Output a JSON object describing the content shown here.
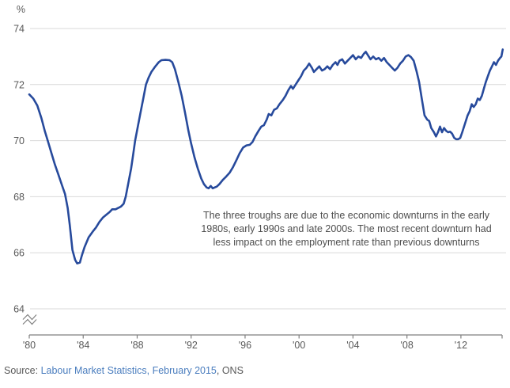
{
  "chart": {
    "unit_label": "%",
    "annotation": {
      "lines": [
        "The three troughs are due to the economic downturns in the early",
        "1980s, early 1990s and late 2000s. The most recent downturn had",
        "less impact on the employment rate than previous downturns"
      ]
    },
    "source": {
      "prefix": "Source: ",
      "link_text": "Labour Market Statistics, February 2015",
      "suffix": ", ONS"
    }
  },
  "colors": {
    "line": "#274a9c",
    "grid": "#d9d9d9",
    "axis": "#7f7f7f",
    "tick_text": "#595959",
    "annotation_text": "#4d4d4d",
    "link": "#4a7dbe"
  },
  "chart_data": {
    "type": "line",
    "title": "",
    "xlabel": "",
    "ylabel": "%",
    "ylim": [
      64,
      74
    ],
    "xlim": [
      1980,
      2015.1
    ],
    "grid": "horizontal",
    "legend": "none",
    "axis_break": true,
    "y_ticks": [
      74,
      72,
      70,
      68,
      66,
      64
    ],
    "x_ticks": [
      {
        "year": 1980,
        "label": "'80"
      },
      {
        "year": 1984,
        "label": "'84"
      },
      {
        "year": 1988,
        "label": "'88"
      },
      {
        "year": 1992,
        "label": "'92"
      },
      {
        "year": 1996,
        "label": "'96"
      },
      {
        "year": 2000,
        "label": "'00"
      },
      {
        "year": 2004,
        "label": "'04"
      },
      {
        "year": 2008,
        "label": "'08"
      },
      {
        "year": 2012,
        "label": "'12"
      }
    ],
    "series": [
      {
        "points": [
          [
            1980.0,
            71.65
          ],
          [
            1980.3,
            71.5
          ],
          [
            1980.6,
            71.25
          ],
          [
            1980.9,
            70.8
          ],
          [
            1981.15,
            70.35
          ],
          [
            1981.4,
            69.95
          ],
          [
            1981.65,
            69.55
          ],
          [
            1981.9,
            69.15
          ],
          [
            1982.15,
            68.8
          ],
          [
            1982.4,
            68.45
          ],
          [
            1982.65,
            68.1
          ],
          [
            1982.85,
            67.6
          ],
          [
            1983.0,
            67.0
          ],
          [
            1983.2,
            66.1
          ],
          [
            1983.4,
            65.75
          ],
          [
            1983.55,
            65.62
          ],
          [
            1983.75,
            65.65
          ],
          [
            1983.9,
            65.9
          ],
          [
            1984.1,
            66.2
          ],
          [
            1984.4,
            66.55
          ],
          [
            1984.7,
            66.75
          ],
          [
            1984.95,
            66.9
          ],
          [
            1985.2,
            67.1
          ],
          [
            1985.45,
            67.25
          ],
          [
            1985.7,
            67.35
          ],
          [
            1985.95,
            67.45
          ],
          [
            1986.15,
            67.55
          ],
          [
            1986.4,
            67.55
          ],
          [
            1986.6,
            67.6
          ],
          [
            1986.8,
            67.65
          ],
          [
            1987.0,
            67.75
          ],
          [
            1987.15,
            68.0
          ],
          [
            1987.35,
            68.5
          ],
          [
            1987.55,
            69.0
          ],
          [
            1987.7,
            69.5
          ],
          [
            1987.85,
            70.0
          ],
          [
            1988.05,
            70.5
          ],
          [
            1988.25,
            71.0
          ],
          [
            1988.45,
            71.5
          ],
          [
            1988.65,
            72.0
          ],
          [
            1988.85,
            72.25
          ],
          [
            1989.05,
            72.45
          ],
          [
            1989.35,
            72.65
          ],
          [
            1989.6,
            72.8
          ],
          [
            1989.8,
            72.87
          ],
          [
            1990.1,
            72.88
          ],
          [
            1990.4,
            72.87
          ],
          [
            1990.6,
            72.8
          ],
          [
            1990.8,
            72.55
          ],
          [
            1991.05,
            72.1
          ],
          [
            1991.3,
            71.6
          ],
          [
            1991.55,
            71.0
          ],
          [
            1991.8,
            70.35
          ],
          [
            1992.0,
            69.9
          ],
          [
            1992.25,
            69.4
          ],
          [
            1992.5,
            69.0
          ],
          [
            1992.75,
            68.65
          ],
          [
            1992.95,
            68.45
          ],
          [
            1993.15,
            68.33
          ],
          [
            1993.3,
            68.3
          ],
          [
            1993.45,
            68.38
          ],
          [
            1993.6,
            68.3
          ],
          [
            1993.75,
            68.33
          ],
          [
            1993.9,
            68.36
          ],
          [
            1994.1,
            68.45
          ],
          [
            1994.35,
            68.6
          ],
          [
            1994.6,
            68.72
          ],
          [
            1994.85,
            68.85
          ],
          [
            1995.1,
            69.05
          ],
          [
            1995.35,
            69.3
          ],
          [
            1995.6,
            69.55
          ],
          [
            1995.85,
            69.75
          ],
          [
            1996.1,
            69.83
          ],
          [
            1996.35,
            69.85
          ],
          [
            1996.55,
            69.95
          ],
          [
            1996.75,
            70.15
          ],
          [
            1997.0,
            70.35
          ],
          [
            1997.2,
            70.5
          ],
          [
            1997.4,
            70.55
          ],
          [
            1997.6,
            70.75
          ],
          [
            1997.75,
            70.95
          ],
          [
            1997.95,
            70.9
          ],
          [
            1998.15,
            71.1
          ],
          [
            1998.35,
            71.15
          ],
          [
            1998.55,
            71.3
          ],
          [
            1998.8,
            71.45
          ],
          [
            1999.0,
            71.6
          ],
          [
            1999.2,
            71.8
          ],
          [
            1999.4,
            71.95
          ],
          [
            1999.55,
            71.85
          ],
          [
            1999.75,
            72.0
          ],
          [
            1999.95,
            72.15
          ],
          [
            2000.15,
            72.3
          ],
          [
            2000.35,
            72.5
          ],
          [
            2000.55,
            72.6
          ],
          [
            2000.75,
            72.75
          ],
          [
            2000.95,
            72.6
          ],
          [
            2001.1,
            72.45
          ],
          [
            2001.3,
            72.55
          ],
          [
            2001.5,
            72.65
          ],
          [
            2001.7,
            72.5
          ],
          [
            2001.9,
            72.55
          ],
          [
            2002.1,
            72.65
          ],
          [
            2002.3,
            72.55
          ],
          [
            2002.5,
            72.7
          ],
          [
            2002.7,
            72.8
          ],
          [
            2002.85,
            72.7
          ],
          [
            2003.0,
            72.85
          ],
          [
            2003.2,
            72.9
          ],
          [
            2003.4,
            72.75
          ],
          [
            2003.6,
            72.85
          ],
          [
            2003.8,
            72.95
          ],
          [
            2004.0,
            73.05
          ],
          [
            2004.2,
            72.9
          ],
          [
            2004.4,
            73.0
          ],
          [
            2004.6,
            72.95
          ],
          [
            2004.8,
            73.1
          ],
          [
            2004.95,
            73.17
          ],
          [
            2005.1,
            73.05
          ],
          [
            2005.3,
            72.9
          ],
          [
            2005.5,
            73.0
          ],
          [
            2005.7,
            72.9
          ],
          [
            2005.9,
            72.95
          ],
          [
            2006.1,
            72.85
          ],
          [
            2006.3,
            72.95
          ],
          [
            2006.5,
            72.8
          ],
          [
            2006.7,
            72.7
          ],
          [
            2006.9,
            72.6
          ],
          [
            2007.1,
            72.5
          ],
          [
            2007.3,
            72.6
          ],
          [
            2007.5,
            72.75
          ],
          [
            2007.7,
            72.85
          ],
          [
            2007.9,
            73.0
          ],
          [
            2008.1,
            73.05
          ],
          [
            2008.3,
            72.98
          ],
          [
            2008.5,
            72.85
          ],
          [
            2008.7,
            72.5
          ],
          [
            2008.9,
            72.1
          ],
          [
            2009.1,
            71.5
          ],
          [
            2009.3,
            70.9
          ],
          [
            2009.5,
            70.75
          ],
          [
            2009.65,
            70.7
          ],
          [
            2009.8,
            70.45
          ],
          [
            2010.0,
            70.3
          ],
          [
            2010.15,
            70.15
          ],
          [
            2010.3,
            70.3
          ],
          [
            2010.45,
            70.5
          ],
          [
            2010.6,
            70.3
          ],
          [
            2010.75,
            70.45
          ],
          [
            2010.9,
            70.35
          ],
          [
            2011.05,
            70.3
          ],
          [
            2011.2,
            70.32
          ],
          [
            2011.35,
            70.25
          ],
          [
            2011.5,
            70.1
          ],
          [
            2011.65,
            70.05
          ],
          [
            2011.8,
            70.05
          ],
          [
            2011.95,
            70.1
          ],
          [
            2012.1,
            70.3
          ],
          [
            2012.3,
            70.6
          ],
          [
            2012.5,
            70.9
          ],
          [
            2012.65,
            71.05
          ],
          [
            2012.8,
            71.3
          ],
          [
            2012.95,
            71.2
          ],
          [
            2013.1,
            71.3
          ],
          [
            2013.25,
            71.5
          ],
          [
            2013.4,
            71.45
          ],
          [
            2013.55,
            71.6
          ],
          [
            2013.7,
            71.85
          ],
          [
            2013.85,
            72.1
          ],
          [
            2014.0,
            72.3
          ],
          [
            2014.15,
            72.5
          ],
          [
            2014.3,
            72.65
          ],
          [
            2014.45,
            72.8
          ],
          [
            2014.6,
            72.7
          ],
          [
            2014.75,
            72.85
          ],
          [
            2014.9,
            72.95
          ],
          [
            2015.0,
            73.0
          ],
          [
            2015.1,
            73.25
          ]
        ]
      }
    ]
  }
}
